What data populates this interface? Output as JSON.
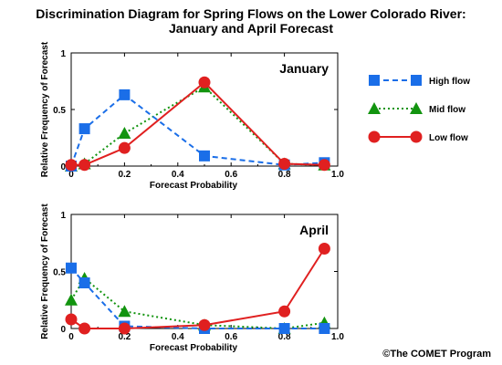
{
  "title_line1": "Discrimination Diagram for Spring Flows on the Lower Colorado River:",
  "title_line2": "January and April Forecast",
  "copyright": "©The COMET Program",
  "colors": {
    "high": "#1a6ee8",
    "mid": "#12940f",
    "low": "#e02020"
  },
  "chart_data": [
    {
      "type": "line",
      "panel_label": "January",
      "xlabel": "Forecast Probability",
      "ylabel": "Relative Frequency of Forecast",
      "xlim": [
        0,
        1
      ],
      "ylim": [
        0,
        1
      ],
      "xticks": [
        "0",
        "0.2",
        "0.4",
        "0.6",
        "0.8",
        "1.0"
      ],
      "yticks": [
        "0",
        "0.5",
        "1"
      ],
      "x": [
        0,
        0.05,
        0.2,
        0.5,
        0.8,
        0.95
      ],
      "series": [
        {
          "name": "High flow",
          "marker": "square",
          "dash": "dashed",
          "values": [
            0.0,
            0.33,
            0.63,
            0.09,
            0.01,
            0.03
          ]
        },
        {
          "name": "Mid flow",
          "marker": "triangle",
          "dash": "dotted",
          "values": [
            0.0,
            0.02,
            0.29,
            0.7,
            0.02,
            0.01
          ]
        },
        {
          "name": "Low flow",
          "marker": "circle",
          "dash": "solid",
          "values": [
            0.01,
            0.01,
            0.16,
            0.74,
            0.02,
            0.01
          ]
        }
      ]
    },
    {
      "type": "line",
      "panel_label": "April",
      "xlabel": "Forecast Probability",
      "ylabel": "Relative Frequency of Forecast",
      "xlim": [
        0,
        1
      ],
      "ylim": [
        0,
        1
      ],
      "xticks": [
        "0",
        "0.2",
        "0.4",
        "0.6",
        "0.8",
        "1.0"
      ],
      "yticks": [
        "0",
        "0.5",
        "1"
      ],
      "x": [
        0,
        0.05,
        0.2,
        0.5,
        0.8,
        0.95
      ],
      "series": [
        {
          "name": "High flow",
          "marker": "square",
          "dash": "dashed",
          "values": [
            0.53,
            0.4,
            0.02,
            0.0,
            0.0,
            0.0
          ]
        },
        {
          "name": "Mid flow",
          "marker": "triangle",
          "dash": "dotted",
          "values": [
            0.25,
            0.44,
            0.15,
            0.03,
            0.0,
            0.05
          ]
        },
        {
          "name": "Low flow",
          "marker": "circle",
          "dash": "solid",
          "values": [
            0.08,
            0.0,
            0.0,
            0.03,
            0.15,
            0.7
          ]
        }
      ]
    }
  ],
  "legend": [
    {
      "label": "High flow",
      "marker": "square",
      "dash": "dashed"
    },
    {
      "label": "Mid flow",
      "marker": "triangle",
      "dash": "dotted"
    },
    {
      "label": "Low flow",
      "marker": "circle",
      "dash": "solid"
    }
  ]
}
